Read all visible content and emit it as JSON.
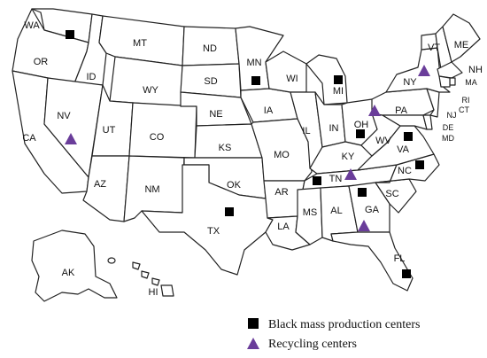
{
  "map": {
    "states": [
      {
        "key": "wa",
        "label": "WA"
      },
      {
        "key": "or",
        "label": "OR"
      },
      {
        "key": "ca",
        "label": "CA"
      },
      {
        "key": "id",
        "label": "ID"
      },
      {
        "key": "nv",
        "label": "NV"
      },
      {
        "key": "mt",
        "label": "MT"
      },
      {
        "key": "wy",
        "label": "WY"
      },
      {
        "key": "ut",
        "label": "UT"
      },
      {
        "key": "az",
        "label": "AZ"
      },
      {
        "key": "co",
        "label": "CO"
      },
      {
        "key": "nm",
        "label": "NM"
      },
      {
        "key": "nd",
        "label": "ND"
      },
      {
        "key": "sd",
        "label": "SD"
      },
      {
        "key": "ne",
        "label": "NE"
      },
      {
        "key": "ks",
        "label": "KS"
      },
      {
        "key": "ok",
        "label": "OK"
      },
      {
        "key": "tx",
        "label": "TX"
      },
      {
        "key": "mn",
        "label": "MN"
      },
      {
        "key": "ia",
        "label": "IA"
      },
      {
        "key": "mo",
        "label": "MO"
      },
      {
        "key": "ar",
        "label": "AR"
      },
      {
        "key": "la",
        "label": "LA"
      },
      {
        "key": "wi",
        "label": "WI"
      },
      {
        "key": "il",
        "label": "IL"
      },
      {
        "key": "mi",
        "label": "MI"
      },
      {
        "key": "in",
        "label": "IN"
      },
      {
        "key": "oh",
        "label": "OH"
      },
      {
        "key": "ky",
        "label": "KY"
      },
      {
        "key": "tn",
        "label": "TN"
      },
      {
        "key": "ms",
        "label": "MS"
      },
      {
        "key": "al",
        "label": "AL"
      },
      {
        "key": "ga",
        "label": "GA"
      },
      {
        "key": "fl",
        "label": "FL"
      },
      {
        "key": "sc",
        "label": "SC"
      },
      {
        "key": "nc",
        "label": "NC"
      },
      {
        "key": "va",
        "label": "VA"
      },
      {
        "key": "wv",
        "label": "WV"
      },
      {
        "key": "pa",
        "label": "PA"
      },
      {
        "key": "ny",
        "label": "NY"
      },
      {
        "key": "vt",
        "label": "VT"
      },
      {
        "key": "nh",
        "label": "NH"
      },
      {
        "key": "me",
        "label": "ME"
      },
      {
        "key": "ma",
        "label": "MA"
      },
      {
        "key": "ri",
        "label": "RI"
      },
      {
        "key": "ct",
        "label": "CT"
      },
      {
        "key": "nj",
        "label": "NJ"
      },
      {
        "key": "de",
        "label": "DE"
      },
      {
        "key": "md",
        "label": "MD"
      },
      {
        "key": "ak",
        "label": "AK"
      },
      {
        "key": "hi",
        "label": "HI"
      }
    ],
    "black_mass_production_centers": [
      "WA",
      "MN",
      "MI",
      "OH",
      "VA",
      "NC",
      "TN",
      "TX",
      "GA",
      "FL"
    ],
    "recycling_centers": [
      "NV",
      "NY",
      "OH",
      "TN",
      "GA"
    ],
    "colors": {
      "black_mass_marker": "#000000",
      "recycling_marker": "#6a3d9a",
      "state_fill": "#ffffff",
      "state_border": "#222222"
    }
  },
  "legend": {
    "black_mass_label": "Black mass production centers",
    "recycling_label": "Recycling centers"
  }
}
